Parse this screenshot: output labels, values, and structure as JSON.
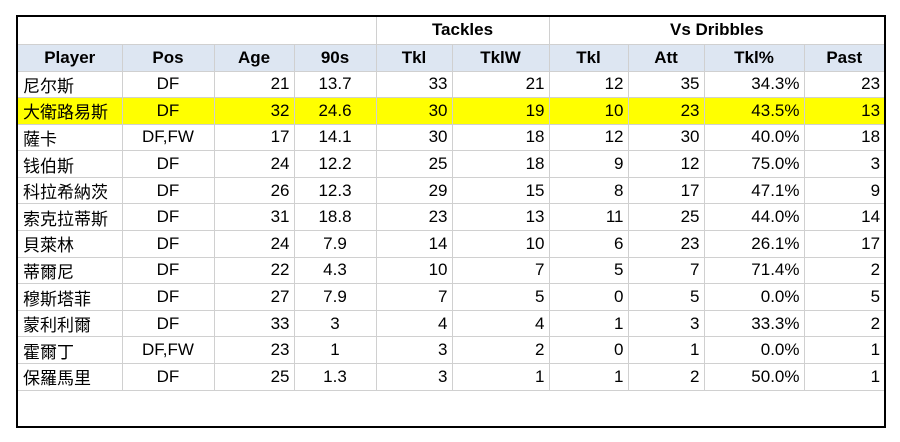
{
  "table": {
    "group_headers": [
      {
        "label": "",
        "span": 4
      },
      {
        "label": "Tackles",
        "span": 2
      },
      {
        "label": "Vs Dribbles",
        "span": 4
      }
    ],
    "columns": [
      "Player",
      "Pos",
      "Age",
      "90s",
      "Tkl",
      "TklW",
      "Tkl",
      "Att",
      "Tkl%",
      "Past"
    ],
    "highlight_color": "#ffff00",
    "header_color": "#dde6f2",
    "highlighted_row_index": 1
  },
  "chart_data": {
    "type": "table",
    "columns": [
      "Player",
      "Pos",
      "Age",
      "90s",
      "Tkl",
      "TklW",
      "Tkl",
      "Att",
      "Tkl%",
      "Past"
    ],
    "rows": [
      [
        "尼尔斯",
        "DF",
        "21",
        "13.7",
        "33",
        "21",
        "12",
        "35",
        "34.3%",
        "23"
      ],
      [
        "大衛路易斯",
        "DF",
        "32",
        "24.6",
        "30",
        "19",
        "10",
        "23",
        "43.5%",
        "13"
      ],
      [
        "薩卡",
        "DF,FW",
        "17",
        "14.1",
        "30",
        "18",
        "12",
        "30",
        "40.0%",
        "18"
      ],
      [
        "钱伯斯",
        "DF",
        "24",
        "12.2",
        "25",
        "18",
        "9",
        "12",
        "75.0%",
        "3"
      ],
      [
        "科拉希納茨",
        "DF",
        "26",
        "12.3",
        "29",
        "15",
        "8",
        "17",
        "47.1%",
        "9"
      ],
      [
        "索克拉蒂斯",
        "DF",
        "31",
        "18.8",
        "23",
        "13",
        "11",
        "25",
        "44.0%",
        "14"
      ],
      [
        "貝萊林",
        "DF",
        "24",
        "7.9",
        "14",
        "10",
        "6",
        "23",
        "26.1%",
        "17"
      ],
      [
        "蒂爾尼",
        "DF",
        "22",
        "4.3",
        "10",
        "7",
        "5",
        "7",
        "71.4%",
        "2"
      ],
      [
        "穆斯塔菲",
        "DF",
        "27",
        "7.9",
        "7",
        "5",
        "0",
        "5",
        "0.0%",
        "5"
      ],
      [
        "蒙利利爾",
        "DF",
        "33",
        "3",
        "4",
        "4",
        "1",
        "3",
        "33.3%",
        "2"
      ],
      [
        "霍爾丁",
        "DF,FW",
        "23",
        "1",
        "3",
        "2",
        "0",
        "1",
        "0.0%",
        "1"
      ],
      [
        "保羅馬里",
        "DF",
        "25",
        "1.3",
        "3",
        "1",
        "1",
        "2",
        "50.0%",
        "1"
      ]
    ]
  }
}
